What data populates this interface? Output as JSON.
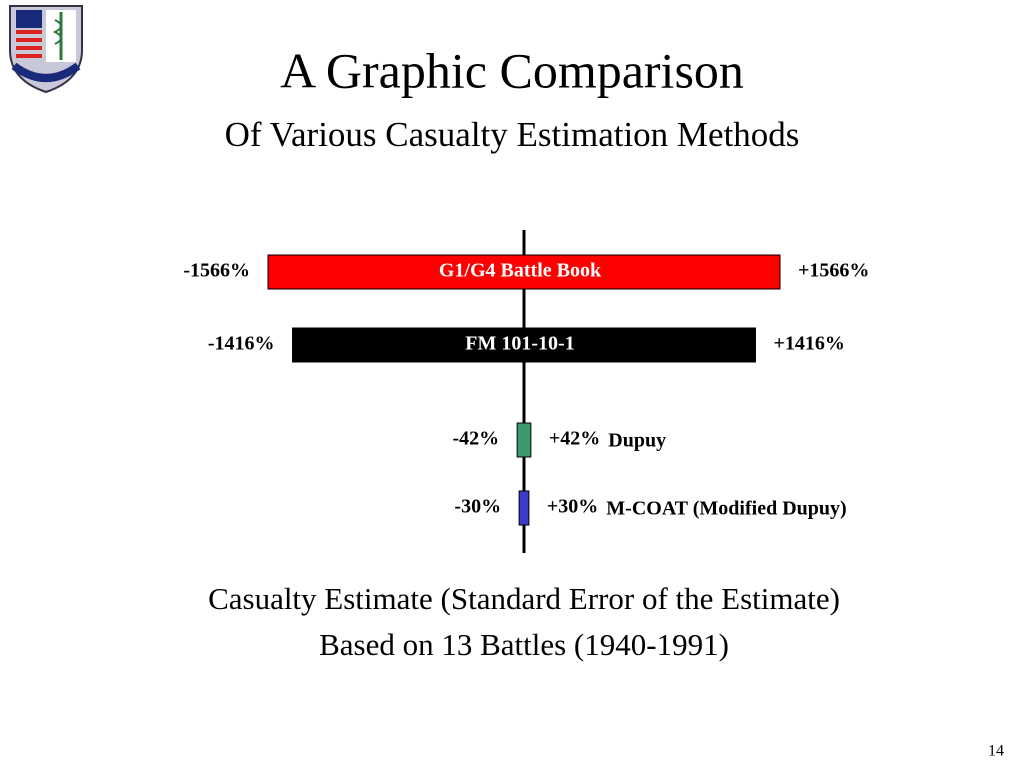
{
  "chart_data": {
    "type": "range",
    "title": "A Graphic Comparison",
    "subtitle": "Of Various Casualty Estimation Methods",
    "series": [
      {
        "name": "G1/G4 Battle Book",
        "color": "#ff0000",
        "values": [
          -1566,
          1566
        ],
        "value_labels": [
          "-1566%",
          "+1566%"
        ]
      },
      {
        "name": "FM 101-10-1",
        "color": "#000000",
        "values": [
          -1416,
          1416
        ],
        "value_labels": [
          "-1416%",
          "+1416%"
        ]
      },
      {
        "name": "Dupuy",
        "color": "#3a9a6a",
        "values": [
          -42,
          42
        ],
        "value_labels": [
          "-42%",
          "+42%"
        ]
      },
      {
        "name": "M-COAT (Modified Dupuy)",
        "color": "#3b3bcc",
        "values": [
          -30,
          30
        ],
        "value_labels": [
          "-30%",
          "+30%"
        ]
      }
    ],
    "caption": [
      "Casualty Estimate (Standard Error of the Estimate)",
      "Based on 13 Battles (1940-1991)"
    ]
  },
  "slide": {
    "page": "14"
  }
}
